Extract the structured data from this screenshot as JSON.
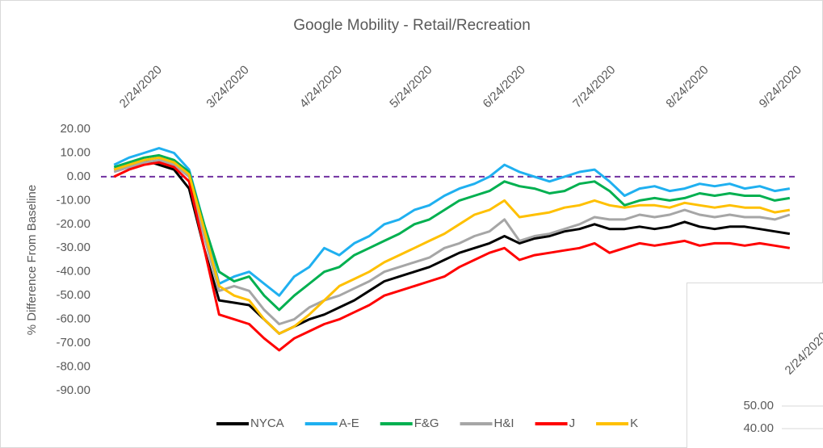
{
  "chart_data": [
    {
      "type": "line",
      "title": "Google Mobility - Retail/Recreation",
      "y_label": "% Difference From Baseline",
      "x": [
        "2/15/2020",
        "2/20/2020",
        "2/25/2020",
        "3/1/2020",
        "3/6/2020",
        "3/11/2020",
        "3/16/2020",
        "3/21/2020",
        "3/26/2020",
        "3/31/2020",
        "4/5/2020",
        "4/10/2020",
        "4/15/2020",
        "4/20/2020",
        "4/25/2020",
        "4/30/2020",
        "5/5/2020",
        "5/10/2020",
        "5/15/2020",
        "5/20/2020",
        "5/25/2020",
        "5/30/2020",
        "6/4/2020",
        "6/9/2020",
        "6/14/2020",
        "6/19/2020",
        "6/24/2020",
        "6/29/2020",
        "7/4/2020",
        "7/9/2020",
        "7/14/2020",
        "7/19/2020",
        "7/24/2020",
        "7/29/2020",
        "8/3/2020",
        "8/8/2020",
        "8/13/2020",
        "8/18/2020",
        "8/23/2020",
        "8/28/2020",
        "9/2/2020",
        "9/7/2020",
        "9/12/2020",
        "9/17/2020",
        "9/22/2020",
        "9/27/2020"
      ],
      "xlim": [
        "2/12/2020",
        "9/30/2020"
      ],
      "xticks": [
        "2/24/2020",
        "3/24/2020",
        "4/24/2020",
        "5/24/2020",
        "6/24/2020",
        "7/24/2020",
        "8/24/2020",
        "9/24/2020"
      ],
      "ylim": [
        -90,
        20
      ],
      "yticks": [
        {
          "value": 20,
          "label": "20.00"
        },
        {
          "value": 10,
          "label": "10.00"
        },
        {
          "value": 0,
          "label": "0.00"
        },
        {
          "value": -10,
          "label": "-10.00"
        },
        {
          "value": -20,
          "label": "-20.00"
        },
        {
          "value": -30,
          "label": "-30.00"
        },
        {
          "value": -40,
          "label": "-40.00"
        },
        {
          "value": -50,
          "label": "-50.00"
        },
        {
          "value": -60,
          "label": "-60.00"
        },
        {
          "value": -70,
          "label": "-70.00"
        },
        {
          "value": -80,
          "label": "-80.00"
        },
        {
          "value": -90,
          "label": "-90.00"
        }
      ],
      "reference_line": {
        "value": 0,
        "color": "#7030a0"
      },
      "legend": "bottom",
      "series": [
        {
          "name": "NYCA",
          "color": "#000000",
          "values": [
            3,
            5,
            7,
            5,
            3,
            -5,
            -30,
            -52,
            -53,
            -54,
            -60,
            -66,
            -63,
            -60,
            -58,
            -55,
            -52,
            -48,
            -44,
            -42,
            -40,
            -38,
            -35,
            -32,
            -30,
            -28,
            -25,
            -28,
            -26,
            -25,
            -23,
            -22,
            -20,
            -22,
            -22,
            -21,
            -22,
            -21,
            -19,
            -21,
            -22,
            -21,
            -21,
            -22,
            -23,
            -24
          ]
        },
        {
          "name": "A-E",
          "color": "#1fb0f0",
          "values": [
            5,
            8,
            10,
            12,
            10,
            3,
            -20,
            -45,
            -42,
            -40,
            -45,
            -50,
            -42,
            -38,
            -30,
            -33,
            -28,
            -25,
            -20,
            -18,
            -14,
            -12,
            -8,
            -5,
            -3,
            0,
            5,
            2,
            0,
            -2,
            0,
            2,
            3,
            -2,
            -8,
            -5,
            -4,
            -6,
            -5,
            -3,
            -4,
            -3,
            -5,
            -4,
            -6,
            -5
          ]
        },
        {
          "name": "F&G",
          "color": "#00b050",
          "values": [
            4,
            6,
            8,
            9,
            7,
            2,
            -20,
            -40,
            -44,
            -42,
            -50,
            -56,
            -50,
            -45,
            -40,
            -38,
            -33,
            -30,
            -27,
            -24,
            -20,
            -18,
            -14,
            -10,
            -8,
            -6,
            -2,
            -4,
            -5,
            -7,
            -6,
            -3,
            -2,
            -6,
            -12,
            -10,
            -9,
            -10,
            -9,
            -7,
            -8,
            -7,
            -8,
            -8,
            -10,
            -9
          ]
        },
        {
          "name": "H&I",
          "color": "#a6a6a6",
          "values": [
            2,
            4,
            6,
            7,
            5,
            0,
            -25,
            -48,
            -46,
            -48,
            -56,
            -62,
            -60,
            -55,
            -52,
            -50,
            -47,
            -44,
            -40,
            -38,
            -36,
            -34,
            -30,
            -28,
            -25,
            -23,
            -18,
            -27,
            -25,
            -24,
            -22,
            -20,
            -17,
            -18,
            -18,
            -16,
            -17,
            -16,
            -14,
            -16,
            -17,
            -16,
            -17,
            -17,
            -18,
            -16
          ]
        },
        {
          "name": "J",
          "color": "#ff0000",
          "values": [
            0,
            3,
            5,
            6,
            4,
            -2,
            -30,
            -58,
            -60,
            -62,
            -68,
            -73,
            -68,
            -65,
            -62,
            -60,
            -57,
            -54,
            -50,
            -48,
            -46,
            -44,
            -42,
            -38,
            -35,
            -32,
            -30,
            -35,
            -33,
            -32,
            -31,
            -30,
            -28,
            -32,
            -30,
            -28,
            -29,
            -28,
            -27,
            -29,
            -28,
            -28,
            -29,
            -28,
            -29,
            -30
          ]
        },
        {
          "name": "K",
          "color": "#ffc000",
          "values": [
            3,
            5,
            7,
            8,
            6,
            1,
            -22,
            -46,
            -50,
            -52,
            -60,
            -66,
            -63,
            -58,
            -52,
            -46,
            -43,
            -40,
            -36,
            -33,
            -30,
            -27,
            -24,
            -20,
            -16,
            -14,
            -10,
            -17,
            -16,
            -15,
            -13,
            -12,
            -10,
            -12,
            -13,
            -12,
            -12,
            -13,
            -11,
            -12,
            -13,
            -12,
            -13,
            -13,
            -15,
            -14
          ]
        }
      ]
    },
    {
      "type": "line",
      "xticks": [
        "2/24/2020"
      ],
      "ylim": [
        30,
        60
      ],
      "yticks": [
        {
          "value": 50,
          "label": "50.00"
        },
        {
          "value": 40,
          "label": "40.00"
        }
      ],
      "grid": true,
      "series": []
    }
  ]
}
